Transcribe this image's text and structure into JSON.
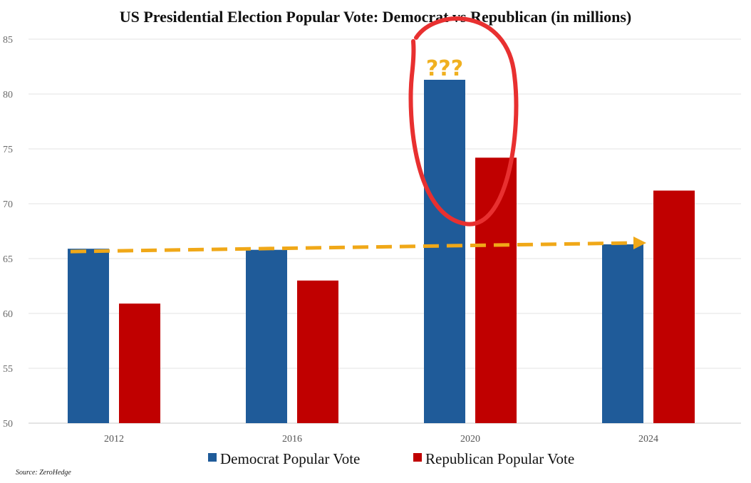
{
  "chart_data": {
    "type": "bar",
    "title": "US Presidential Election Popular Vote: Democrat vs Republican (in millions)",
    "categories": [
      "2012",
      "2016",
      "2020",
      "2024"
    ],
    "series": [
      {
        "name": "Democrat Popular Vote",
        "color": "#1f5b99",
        "values": [
          65.9,
          65.8,
          81.3,
          66.3
        ]
      },
      {
        "name": "Republican Popular Vote",
        "color": "#c00000",
        "values": [
          60.9,
          63.0,
          74.2,
          71.2
        ]
      }
    ],
    "ylim": [
      50,
      85
    ],
    "yticks": [
      "50",
      "55",
      "60",
      "65",
      "70",
      "75",
      "80",
      "85"
    ],
    "grid": true,
    "legend": "bottom",
    "annotations": {
      "question_marks": "???",
      "circle_color": "#e83030",
      "arrow_color": "#f0a818"
    },
    "source": "Source: ZeroHedge"
  }
}
